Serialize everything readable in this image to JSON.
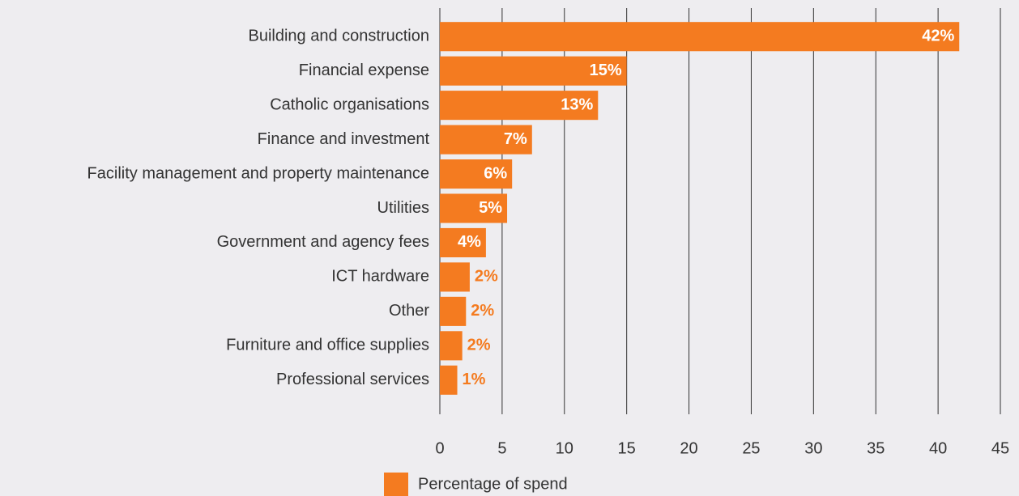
{
  "chart_data": {
    "type": "barh",
    "categories": [
      "Building and construction",
      "Financial expense",
      "Catholic organisations",
      "Finance and investment",
      "Facility management and property maintenance",
      "Utilities",
      "Government and agency fees",
      "ICT hardware",
      "Other",
      "Furniture and office supplies",
      "Professional services"
    ],
    "series": [
      {
        "name": "Percentage of spend",
        "color": "#f47b20",
        "values": [
          41.7,
          15.0,
          12.7,
          7.4,
          5.8,
          5.4,
          3.7,
          2.4,
          2.1,
          1.8,
          1.4
        ],
        "value_labels": [
          "42%",
          "15%",
          "13%",
          "7%",
          "6%",
          "5%",
          "4%",
          "2%",
          "2%",
          "2%",
          "1%"
        ]
      }
    ],
    "xlim": [
      0,
      45
    ],
    "xticks": [
      0,
      5,
      10,
      15,
      20,
      25,
      30,
      35,
      40,
      45
    ],
    "grid": true,
    "legend": "bottom"
  }
}
